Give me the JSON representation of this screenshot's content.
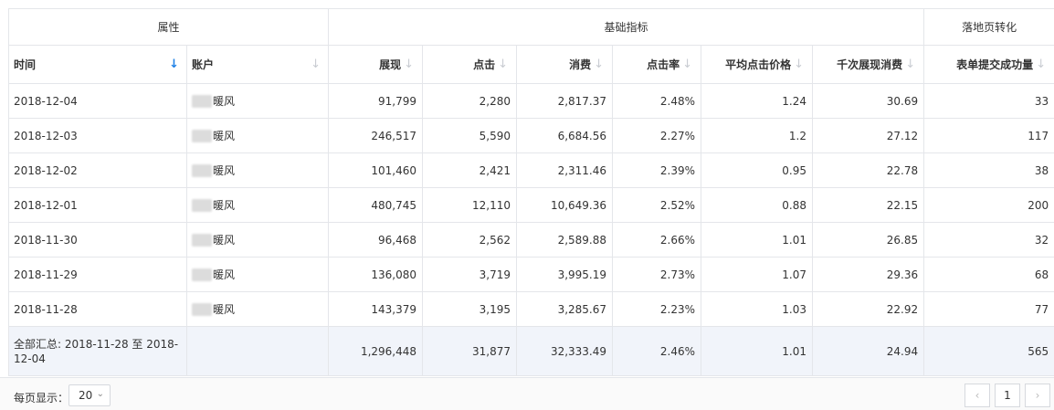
{
  "groups": {
    "attributes": "属性",
    "basic_metrics": "基础指标",
    "landing_conversion": "落地页转化"
  },
  "columns": [
    "时间",
    "账户",
    "展现",
    "点击",
    "消费",
    "点击率",
    "平均点击价格",
    "千次展现消费",
    "表单提交成功量"
  ],
  "account_suffix": "暖风",
  "rows": [
    {
      "date": "2018-12-04",
      "impressions": "91,799",
      "clicks": "2,280",
      "cost": "2,817.37",
      "ctr": "2.48%",
      "cpc": "1.24",
      "cpm": "30.69",
      "forms": "33"
    },
    {
      "date": "2018-12-03",
      "impressions": "246,517",
      "clicks": "5,590",
      "cost": "6,684.56",
      "ctr": "2.27%",
      "cpc": "1.2",
      "cpm": "27.12",
      "forms": "117"
    },
    {
      "date": "2018-12-02",
      "impressions": "101,460",
      "clicks": "2,421",
      "cost": "2,311.46",
      "ctr": "2.39%",
      "cpc": "0.95",
      "cpm": "22.78",
      "forms": "38"
    },
    {
      "date": "2018-12-01",
      "impressions": "480,745",
      "clicks": "12,110",
      "cost": "10,649.36",
      "ctr": "2.52%",
      "cpc": "0.88",
      "cpm": "22.15",
      "forms": "200"
    },
    {
      "date": "2018-11-30",
      "impressions": "96,468",
      "clicks": "2,562",
      "cost": "2,589.88",
      "ctr": "2.66%",
      "cpc": "1.01",
      "cpm": "26.85",
      "forms": "32"
    },
    {
      "date": "2018-11-29",
      "impressions": "136,080",
      "clicks": "3,719",
      "cost": "3,995.19",
      "ctr": "2.73%",
      "cpc": "1.07",
      "cpm": "29.36",
      "forms": "68"
    },
    {
      "date": "2018-11-28",
      "impressions": "143,379",
      "clicks": "3,195",
      "cost": "3,285.67",
      "ctr": "2.23%",
      "cpc": "1.03",
      "cpm": "22.92",
      "forms": "77"
    }
  ],
  "total": {
    "label": "全部汇总: 2018-11-28 至 2018-12-04",
    "impressions": "1,296,448",
    "clicks": "31,877",
    "cost": "32,333.49",
    "ctr": "2.46%",
    "cpc": "1.01",
    "cpm": "24.94",
    "forms": "565"
  },
  "footer": {
    "per_page_label": "每页显示：",
    "per_page_value": "20",
    "prev": "‹",
    "page": "1",
    "next": "›"
  },
  "colors": {
    "sort_active": "#1e80e6",
    "total_bg": "#f1f4fa",
    "border": "#e4e6ea"
  }
}
